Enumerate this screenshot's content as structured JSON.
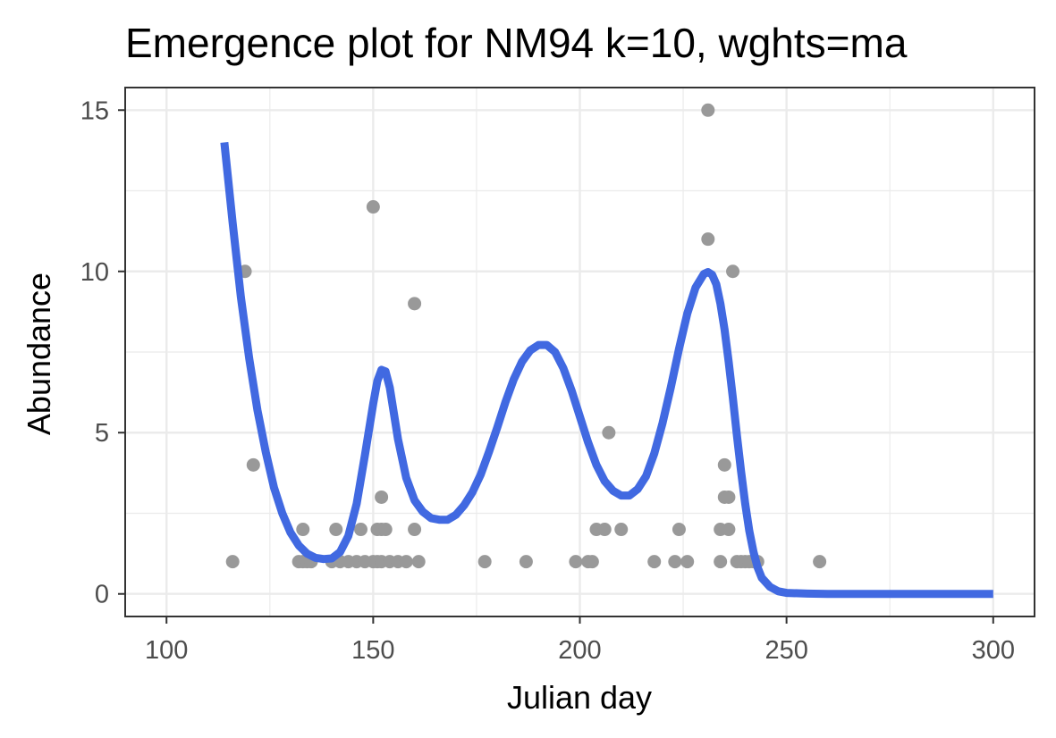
{
  "chart_data": {
    "type": "scatter",
    "title": "Emergence plot for NM94 k=10, wghts=ma",
    "xlabel": "Julian day",
    "ylabel": "Abundance",
    "xlim": [
      90,
      310
    ],
    "ylim": [
      -0.7,
      15.7
    ],
    "x_ticks": [
      100,
      150,
      200,
      250,
      300
    ],
    "y_ticks": [
      0,
      5,
      10,
      15
    ],
    "grid": true,
    "legend": "none",
    "colors": {
      "points": "#999999",
      "line": "#4169e1",
      "panel_border": "#333333",
      "grid": "#ebebeb"
    },
    "series": [
      {
        "kind": "points",
        "x": [
          116,
          119,
          121,
          132,
          133,
          133,
          134,
          135,
          140,
          141,
          142,
          144,
          146,
          147,
          148,
          150,
          150,
          151,
          151,
          152,
          152,
          152,
          153,
          154,
          156,
          158,
          160,
          160,
          161,
          177,
          187,
          199,
          202,
          203,
          204,
          206,
          207,
          210,
          218,
          223,
          224,
          226,
          231,
          231,
          234,
          234,
          235,
          235,
          236,
          236,
          237,
          238,
          239,
          240,
          241,
          242,
          243,
          258
        ],
        "y": [
          1,
          10,
          4,
          1,
          1,
          2,
          1,
          1,
          1,
          2,
          1,
          1,
          1,
          2,
          1,
          12,
          1,
          1,
          2,
          3,
          2,
          1,
          2,
          1,
          1,
          1,
          9,
          2,
          1,
          1,
          1,
          1,
          1,
          1,
          2,
          2,
          5,
          2,
          1,
          1,
          2,
          1,
          15,
          11,
          1,
          2,
          3,
          4,
          3,
          2,
          10,
          1,
          1,
          1,
          1,
          1,
          1,
          1
        ]
      },
      {
        "kind": "line",
        "x": [
          114,
          116,
          118,
          120,
          122,
          124,
          126,
          128,
          130,
          132,
          134,
          136,
          138,
          140,
          142,
          144,
          146,
          148,
          150,
          151,
          152,
          153,
          154,
          155,
          156,
          158,
          160,
          162,
          164,
          166,
          168,
          170,
          172,
          174,
          176,
          178,
          180,
          182,
          184,
          186,
          188,
          190,
          192,
          194,
          196,
          198,
          200,
          202,
          204,
          206,
          208,
          210,
          212,
          214,
          216,
          218,
          220,
          222,
          224,
          226,
          228,
          230,
          231,
          232,
          233,
          234,
          235,
          236,
          237,
          238,
          239,
          240,
          241,
          242,
          243,
          244,
          246,
          248,
          250,
          255,
          260,
          270,
          280,
          290,
          300
        ],
        "y": [
          14,
          11.5,
          9.2,
          7.3,
          5.7,
          4.4,
          3.3,
          2.5,
          1.9,
          1.5,
          1.25,
          1.12,
          1.08,
          1.1,
          1.3,
          1.8,
          2.8,
          4.3,
          5.9,
          6.6,
          6.95,
          6.9,
          6.4,
          5.6,
          4.8,
          3.6,
          2.9,
          2.55,
          2.35,
          2.3,
          2.3,
          2.45,
          2.75,
          3.15,
          3.7,
          4.4,
          5.15,
          5.95,
          6.65,
          7.2,
          7.55,
          7.72,
          7.72,
          7.5,
          7.0,
          6.3,
          5.5,
          4.7,
          4.0,
          3.5,
          3.2,
          3.05,
          3.05,
          3.25,
          3.65,
          4.35,
          5.3,
          6.4,
          7.6,
          8.7,
          9.5,
          9.92,
          9.98,
          9.9,
          9.6,
          9.0,
          8.2,
          7.2,
          6.1,
          4.9,
          3.8,
          2.8,
          1.95,
          1.3,
          0.82,
          0.5,
          0.22,
          0.08,
          0.03,
          0.01,
          0,
          0,
          0,
          0,
          0
        ]
      }
    ]
  }
}
